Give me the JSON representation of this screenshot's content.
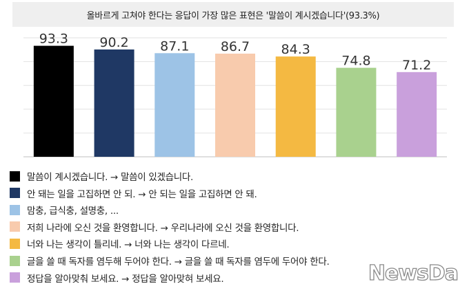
{
  "title": "올바르게 고쳐야 한다는 응답이 가장 많은 표현은 '말씀이 계시겠습니다'(93.3%)",
  "watermark": "NewsDa",
  "chart_data": {
    "type": "bar",
    "ylim": [
      0,
      100
    ],
    "grid": true,
    "legend_position": "bottom",
    "categories": [
      "말씀이 계시겠습니다. → 말씀이 있겠습니다.",
      "안 돼는 일을 고집하면 안 되. → 안 되는 일을 고집하면 안 돼.",
      "맘충, 급식충, 설명충, ...",
      "저희 나라에 오신 것을 환영합니다. → 우리나라에 오신 것을 환영합니다.",
      "너와 나는 생각이 틀리네. → 너와 나는 생각이 다르네.",
      "글을 쓸 때 독자를 염두해 두어야 한다. → 글을 쓸 때 독자를 염두에 두어야 한다.",
      "정답을 알아맞춰 보세요. → 정답을 알아맞혀 보세요."
    ],
    "values": [
      93.3,
      90.2,
      87.1,
      86.7,
      84.3,
      74.8,
      71.2
    ],
    "value_labels": [
      "93.3",
      "90.2",
      "87.1",
      "86.7",
      "84.3",
      "74.8",
      "71.2"
    ],
    "colors": [
      "#000000",
      "#1f3864",
      "#9dc3e6",
      "#f8cbad",
      "#f4b942",
      "#a9d18e",
      "#c9a0dc"
    ]
  }
}
